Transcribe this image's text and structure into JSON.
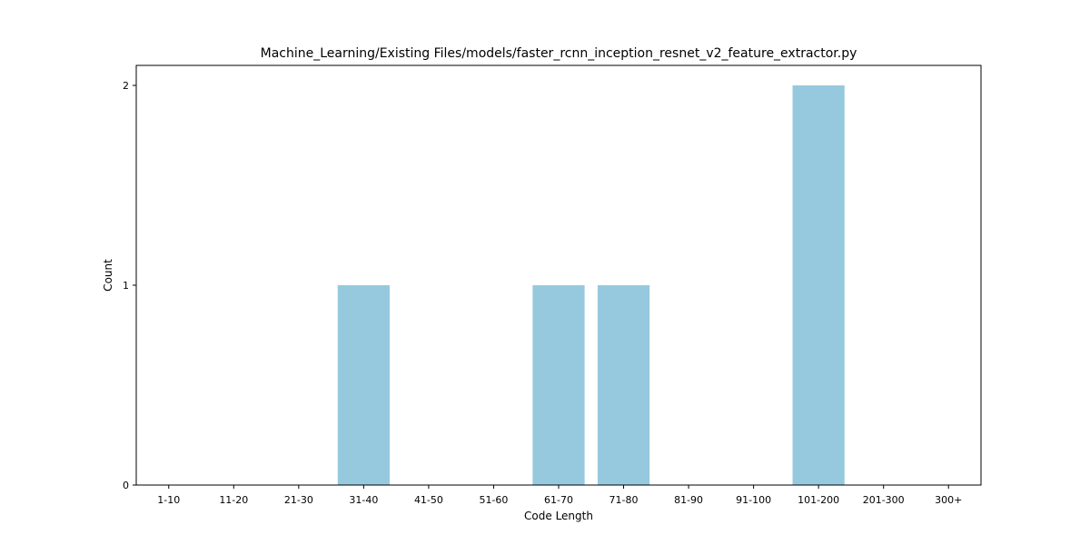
{
  "chart_data": {
    "type": "bar",
    "title": "Machine_Learning/Existing Files/models/faster_rcnn_inception_resnet_v2_feature_extractor.py",
    "xlabel": "Code Length",
    "ylabel": "Count",
    "categories": [
      "1-10",
      "11-20",
      "21-30",
      "31-40",
      "41-50",
      "51-60",
      "61-70",
      "71-80",
      "81-90",
      "91-100",
      "101-200",
      "201-300",
      "300+"
    ],
    "values": [
      0,
      0,
      0,
      1,
      0,
      0,
      1,
      1,
      0,
      0,
      2,
      0,
      0
    ],
    "ylim": [
      0,
      2.1
    ],
    "yticks": [
      0,
      1,
      2
    ],
    "bar_color": "#96c9de",
    "grid": false,
    "legend": "none"
  }
}
